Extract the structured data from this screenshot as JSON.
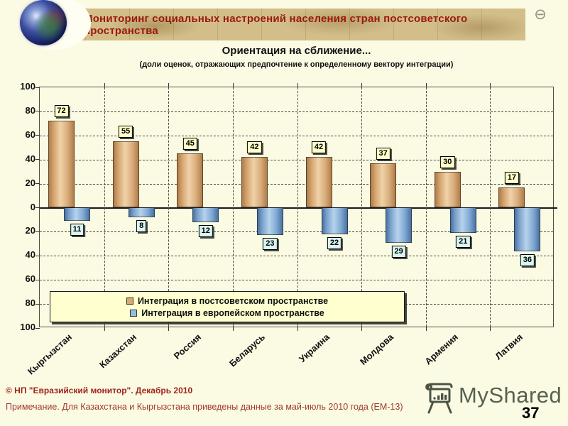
{
  "header": {
    "title": "Мониторинг социальных настроений населения стран постсоветского пространства",
    "window_button": "⊖"
  },
  "chart": {
    "title": "Ориентация на сближение...",
    "subtitle": "(доли оценок, отражающих предпочтение к определенному вектору интеграции)"
  },
  "chart_data": {
    "type": "bar",
    "orientation": "diverging-vertical",
    "title": "Ориентация на сближение...",
    "subtitle": "(доли оценок, отражающих предпочтение к определенному вектору интеграции)",
    "categories": [
      "Кыргызстан",
      "Казахстан",
      "Россия",
      "Беларусь",
      "Украина",
      "Молдова",
      "Армения",
      "Латвия"
    ],
    "series": [
      {
        "name": "Интеграция в постсоветском пространстве",
        "direction": "up",
        "values": [
          72,
          55,
          45,
          42,
          42,
          37,
          30,
          17
        ],
        "color": "#D9A874",
        "label_bg": "#FFFFC8"
      },
      {
        "name": "Интеграция в европейском пространстве",
        "direction": "down",
        "values": [
          11,
          8,
          12,
          23,
          22,
          29,
          21,
          36
        ],
        "color": "#94BEE2",
        "label_bg": "#D9F6F0"
      }
    ],
    "y_ticks": [
      100,
      80,
      60,
      40,
      20,
      0,
      20,
      40,
      60,
      80,
      100
    ],
    "ylim": [
      -100,
      100
    ],
    "grid": "dashed",
    "legend_position": "inside-bottom"
  },
  "footer": {
    "copyright": "© НП \"Евразийский монитор\". Декабрь 2010",
    "note": "Примечание. Для Казахстана и Кыргызстана приведены данные за май-июль 2010 года (ЕМ-13)"
  },
  "watermark": {
    "brand": "MyShared",
    "page": "37"
  }
}
